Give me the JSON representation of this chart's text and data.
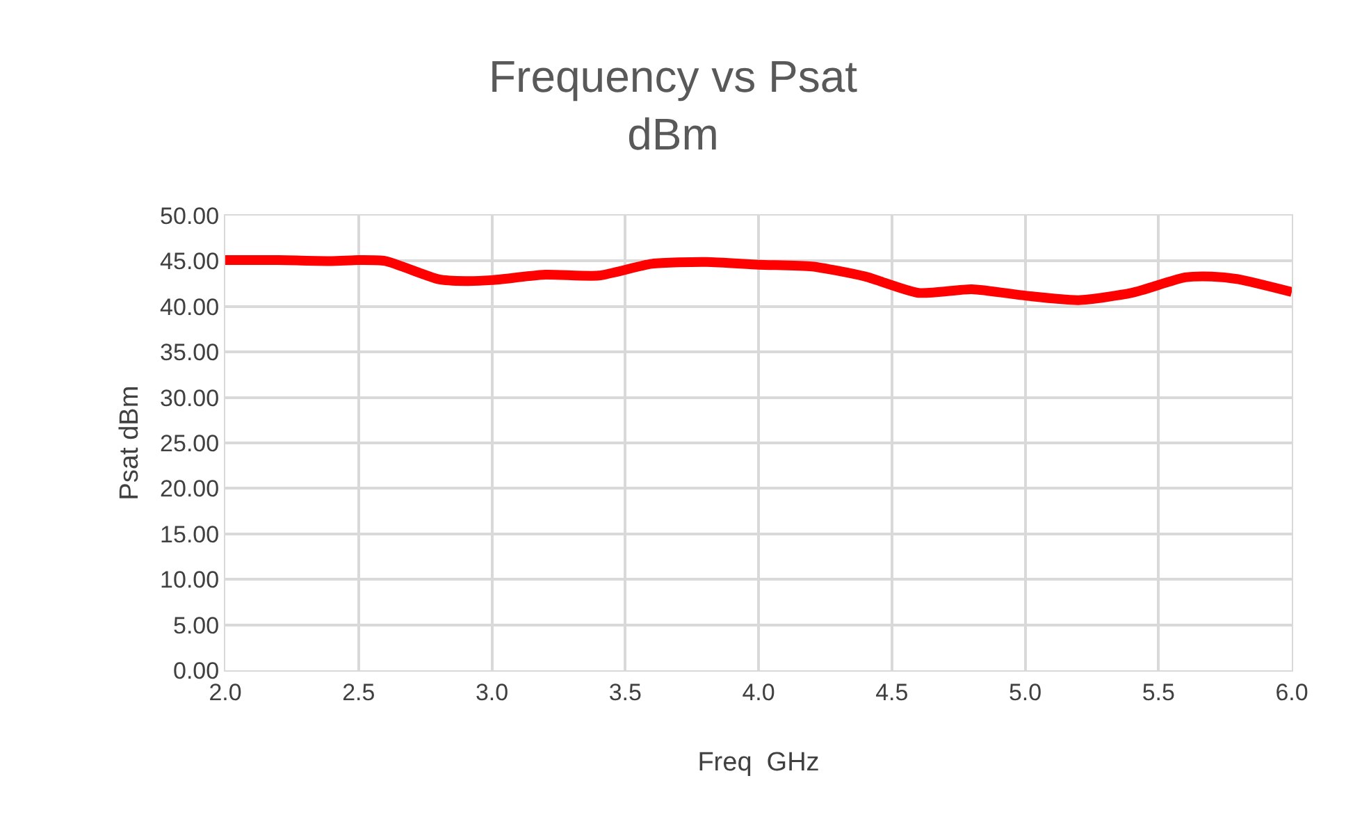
{
  "chart_data": {
    "type": "line",
    "title": "Frequency vs Psat\ndBm",
    "xlabel": "Freq  GHz",
    "ylabel": "Psat dBm",
    "x": [
      2.0,
      2.2,
      2.4,
      2.5,
      2.6,
      2.8,
      2.9,
      3.0,
      3.2,
      3.4,
      3.6,
      3.8,
      4.0,
      4.2,
      4.4,
      4.6,
      4.8,
      5.0,
      5.2,
      5.4,
      5.6,
      5.7,
      5.8,
      6.0
    ],
    "series": [
      {
        "color": "#ff0000",
        "values": [
          45.1,
          45.1,
          45.0,
          45.1,
          45.0,
          43.0,
          42.8,
          42.9,
          43.5,
          43.4,
          44.7,
          44.9,
          44.6,
          44.4,
          43.3,
          41.5,
          41.9,
          41.2,
          40.7,
          41.5,
          43.2,
          43.3,
          43.0,
          41.6
        ]
      }
    ],
    "xlim": [
      2.0,
      6.0
    ],
    "xticks": [
      {
        "value": 2,
        "label": "2.0"
      },
      2.5,
      {
        "value": 3,
        "label": "3.0"
      },
      3.5,
      {
        "value": 4,
        "label": "4.0"
      },
      4.5,
      {
        "value": 5,
        "label": "5.0"
      },
      5.5,
      {
        "value": 6,
        "label": "6.0"
      }
    ],
    "ylim": [
      0,
      50
    ],
    "yticks": [
      {
        "value": 0,
        "label": "0.00"
      },
      {
        "value": 5,
        "label": "5.00"
      },
      {
        "value": 10,
        "label": "10.00"
      },
      {
        "value": 15,
        "label": "15.00"
      },
      {
        "value": 20,
        "label": "20.00"
      },
      {
        "value": 25,
        "label": "25.00"
      },
      {
        "value": 30,
        "label": "30.00"
      },
      {
        "value": 35,
        "label": "35.00"
      },
      {
        "value": 40,
        "label": "40.00"
      },
      {
        "value": 45,
        "label": "45.00"
      },
      {
        "value": 50,
        "label": "50.00"
      }
    ],
    "grid": true,
    "marker": "none",
    "line_style": "solid"
  }
}
